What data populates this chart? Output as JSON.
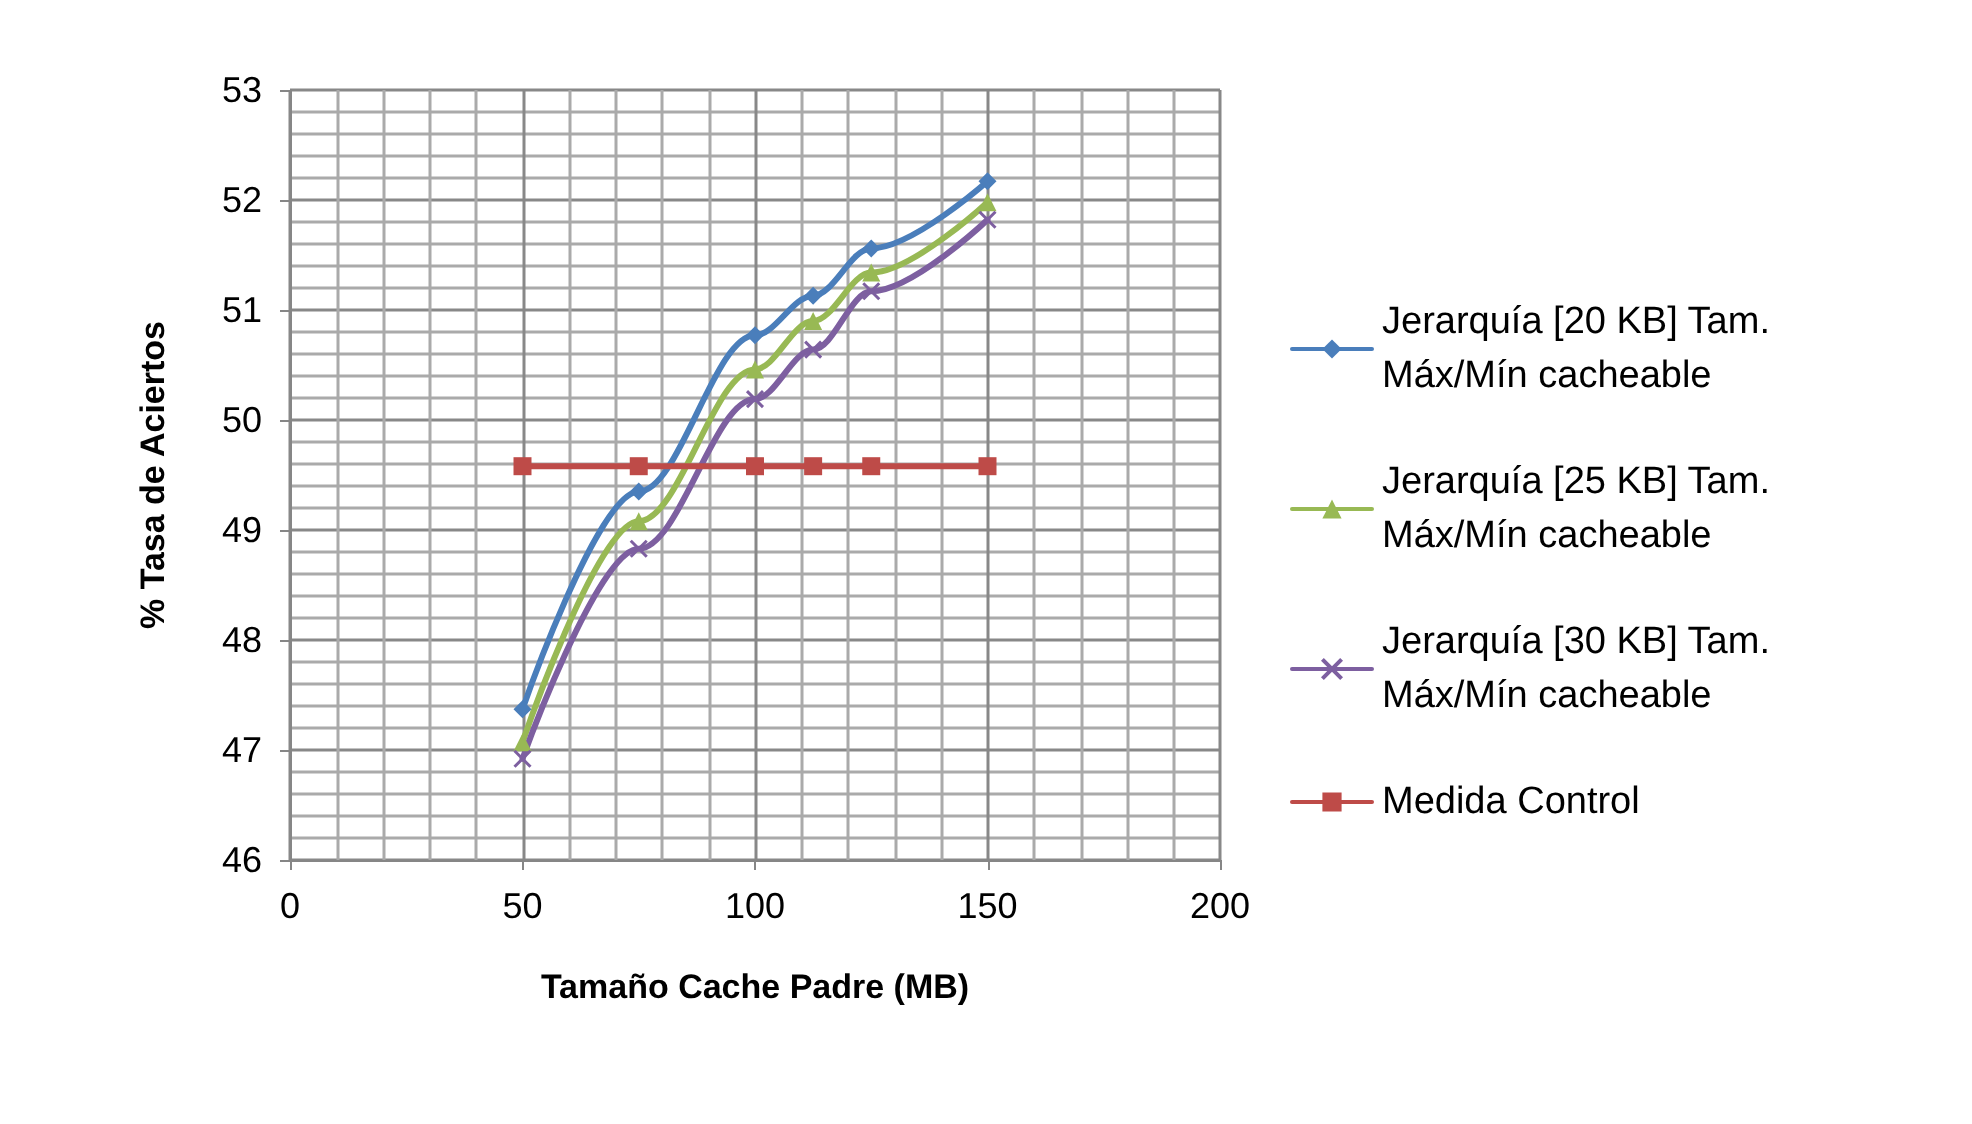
{
  "chart_data": {
    "type": "line",
    "xlabel": "Tamaño Cache Padre (MB)",
    "ylabel": "% Tasa de Aciertos",
    "x": [
      50,
      75,
      100,
      112.5,
      125,
      150
    ],
    "series": [
      {
        "name": "Jerarquía [20 KB] Tam. Máx/Mín cacheable",
        "color": "#4a7ebb",
        "marker": "diamond",
        "values": [
          47.37,
          49.35,
          50.77,
          51.13,
          51.56,
          52.17
        ]
      },
      {
        "name": "Jerarquía [25 KB] Tam. Máx/Mín cacheable",
        "color": "#98b954",
        "marker": "triangle",
        "values": [
          47.07,
          49.08,
          50.46,
          50.9,
          51.34,
          51.98
        ]
      },
      {
        "name": "Jerarquía [30 KB] Tam. Máx/Mín cacheable",
        "color": "#7d5fa0",
        "marker": "cross",
        "values": [
          46.92,
          48.83,
          50.19,
          50.64,
          51.17,
          51.82
        ]
      },
      {
        "name": "Medida Control",
        "color": "#be4b48",
        "marker": "square",
        "values": [
          49.58,
          49.58,
          49.58,
          49.58,
          49.58,
          49.58
        ]
      }
    ],
    "xlim": [
      0,
      200
    ],
    "xticks": [
      0,
      50,
      100,
      150,
      200
    ],
    "ylim": [
      46,
      53
    ],
    "yticks": [
      46,
      47,
      48,
      49,
      50,
      51,
      52,
      53
    ],
    "grid": true,
    "legend": "right",
    "line_style": "solid"
  }
}
